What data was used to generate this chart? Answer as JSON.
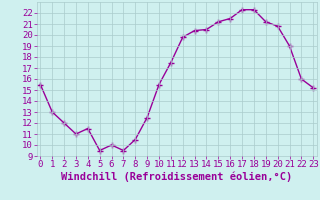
{
  "x": [
    0,
    1,
    2,
    3,
    4,
    5,
    6,
    7,
    8,
    9,
    10,
    11,
    12,
    13,
    14,
    15,
    16,
    17,
    18,
    19,
    20,
    21,
    22,
    23
  ],
  "y": [
    15.5,
    13.0,
    12.0,
    11.0,
    11.5,
    9.5,
    10.0,
    9.5,
    10.5,
    12.5,
    15.5,
    17.5,
    19.8,
    20.4,
    20.5,
    21.2,
    21.5,
    22.3,
    22.3,
    21.2,
    20.8,
    19.0,
    16.0,
    15.2
  ],
  "bg_color": "#cff0ef",
  "line_color": "#990099",
  "marker": "+",
  "xlabel": "Windchill (Refroidissement éolien,°C)",
  "ylim_min": 9,
  "ylim_max": 23,
  "xlim_min": 0,
  "xlim_max": 23,
  "yticks": [
    9,
    10,
    11,
    12,
    13,
    14,
    15,
    16,
    17,
    18,
    19,
    20,
    21,
    22
  ],
  "xticks": [
    0,
    1,
    2,
    3,
    4,
    5,
    6,
    7,
    8,
    9,
    10,
    11,
    12,
    13,
    14,
    15,
    16,
    17,
    18,
    19,
    20,
    21,
    22,
    23
  ],
  "grid_color": "#aacccc",
  "tick_color": "#990099",
  "label_color": "#990099",
  "xlabel_fontsize": 7.5,
  "tick_fontsize": 6.5,
  "line_width": 1.0,
  "marker_size": 5
}
